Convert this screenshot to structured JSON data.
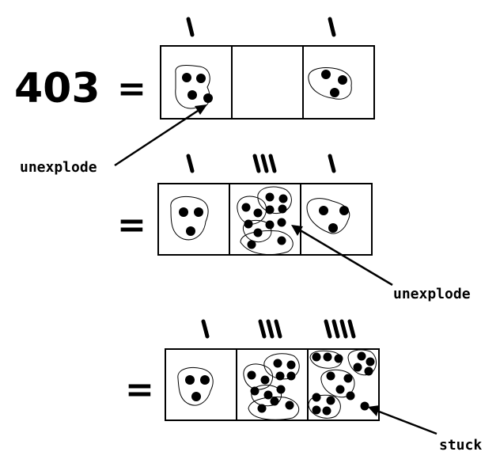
{
  "number": "403",
  "equals": "=",
  "labels": {
    "unexplode_1": "unexplode",
    "unexplode_2": "unexplode",
    "stuck": "stuck"
  },
  "rows": [
    {
      "id": "row-1",
      "boxes": [
        {
          "tally": 1,
          "dots": 4
        },
        {
          "tally": 0,
          "dots": 0
        },
        {
          "tally": 1,
          "dots": 3
        }
      ]
    },
    {
      "id": "row-2",
      "boxes": [
        {
          "tally": 1,
          "dots": 3
        },
        {
          "tally": 3,
          "dots": 12
        },
        {
          "tally": 1,
          "dots": 3
        }
      ]
    },
    {
      "id": "row-3",
      "boxes": [
        {
          "tally": 1,
          "dots": 3
        },
        {
          "tally": 3,
          "dots": 12
        },
        {
          "tally": 4,
          "dots": 16
        }
      ]
    }
  ]
}
